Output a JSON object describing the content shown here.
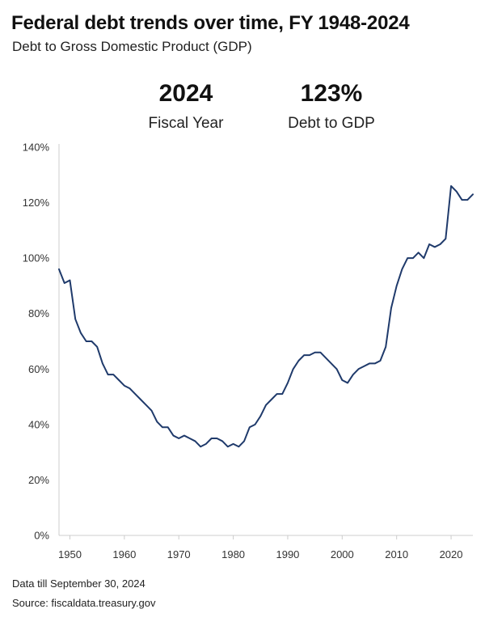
{
  "header": {
    "title": "Federal debt trends over time, FY 1948-2024",
    "subtitle": "Debt to Gross Domestic Product (GDP)"
  },
  "stats": {
    "year_value": "2024",
    "year_label": "Fiscal Year",
    "ratio_value": "123%",
    "ratio_label": "Debt to GDP"
  },
  "footer": {
    "data_note": "Data till September 30, 2024",
    "source": "Source: fiscaldata.treasury.gov"
  },
  "colors": {
    "line": "#1f3a6b",
    "axis": "#cccccc",
    "text": "#111111"
  },
  "chart_data": {
    "type": "line",
    "title": "Federal debt trends over time, FY 1948-2024",
    "subtitle": "Debt to Gross Domestic Product (GDP)",
    "xlabel": "",
    "ylabel": "",
    "xlim": [
      1948,
      2024
    ],
    "ylim": [
      0,
      140
    ],
    "y_ticks": [
      0,
      20,
      40,
      60,
      80,
      100,
      120,
      140
    ],
    "y_tick_labels": [
      "0%",
      "20%",
      "40%",
      "60%",
      "80%",
      "100%",
      "120%",
      "140%"
    ],
    "x_ticks": [
      1950,
      1960,
      1970,
      1980,
      1990,
      2000,
      2010,
      2020
    ],
    "x_tick_labels": [
      "1950",
      "1960",
      "1970",
      "1980",
      "1990",
      "2000",
      "2010",
      "2020"
    ],
    "grid": false,
    "legend": "none",
    "series": [
      {
        "x": [
          1948,
          1949,
          1950,
          1951,
          1952,
          1953,
          1954,
          1955,
          1956,
          1957,
          1958,
          1959,
          1960,
          1961,
          1962,
          1963,
          1964,
          1965,
          1966,
          1967,
          1968,
          1969,
          1970,
          1971,
          1972,
          1973,
          1974,
          1975,
          1976,
          1977,
          1978,
          1979,
          1980,
          1981,
          1982,
          1983,
          1984,
          1985,
          1986,
          1987,
          1988,
          1989,
          1990,
          1991,
          1992,
          1993,
          1994,
          1995,
          1996,
          1997,
          1998,
          1999,
          2000,
          2001,
          2002,
          2003,
          2004,
          2005,
          2006,
          2007,
          2008,
          2009,
          2010,
          2011,
          2012,
          2013,
          2014,
          2015,
          2016,
          2017,
          2018,
          2019,
          2020,
          2021,
          2022,
          2023,
          2024
        ],
        "y": [
          96,
          91,
          92,
          78,
          73,
          70,
          70,
          68,
          62,
          58,
          58,
          56,
          54,
          53,
          51,
          49,
          47,
          45,
          41,
          39,
          39,
          36,
          35,
          36,
          35,
          34,
          32,
          33,
          35,
          35,
          34,
          32,
          33,
          32,
          34,
          39,
          40,
          43,
          47,
          49,
          51,
          51,
          55,
          60,
          63,
          65,
          65,
          66,
          66,
          64,
          62,
          60,
          56,
          55,
          58,
          60,
          61,
          62,
          62,
          63,
          68,
          82,
          90,
          96,
          100,
          100,
          102,
          100,
          105,
          104,
          105,
          107,
          126,
          124,
          121,
          121,
          123
        ]
      }
    ]
  }
}
